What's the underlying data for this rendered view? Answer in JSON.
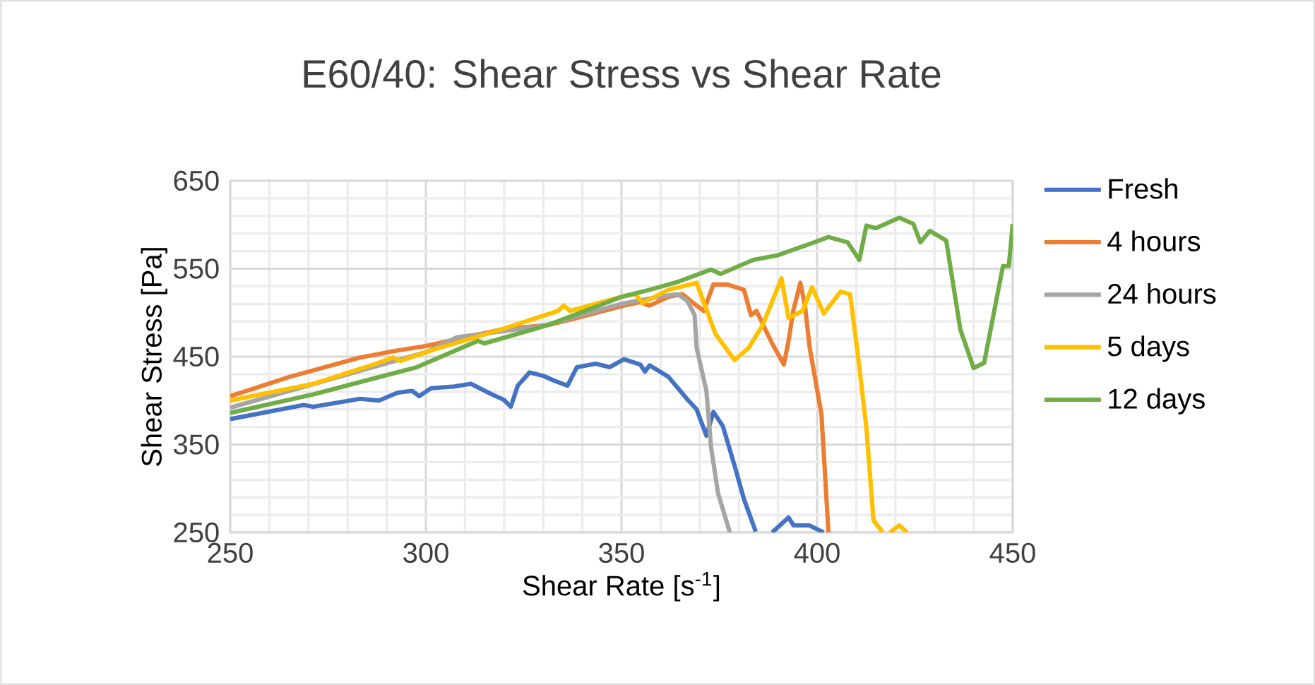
{
  "chart_data": {
    "type": "line",
    "title": "E60/40: Shear Stress vs Shear Rate",
    "xlabel": "Shear Rate [s$^{-1}$]",
    "ylabel": "Shear Stress [Pa]",
    "xlim": [
      250,
      450
    ],
    "ylim": [
      250,
      650
    ],
    "xticks": [
      250,
      300,
      350,
      400,
      450
    ],
    "yticks": [
      250,
      350,
      450,
      550,
      650
    ],
    "grid": true,
    "legend": "right",
    "marker": "none",
    "line_style": "solid",
    "series": [
      {
        "name": "Fresh",
        "color": "#4472c4",
        "x": [
          250,
          268.8,
          271.2,
          283.2,
          288,
          292.8,
          296.5,
          298.3,
          301.3,
          307.3,
          311.5,
          316.9,
          319.9,
          321.7,
          323.5,
          326.5,
          330.1,
          332.6,
          336.2,
          338.6,
          343.4,
          347,
          350.6,
          354.8,
          356,
          357.2,
          362,
          366.9,
          369.2,
          371.7,
          373.5,
          375.9,
          378.9,
          381.3,
          384.3,
          386,
          388.5,
          392.7,
          394,
          398,
          401.7
        ],
        "values": [
          379,
          395,
          393,
          402,
          400,
          409,
          411,
          405,
          414,
          416,
          419,
          407,
          401,
          393,
          417,
          432,
          428,
          423,
          417,
          438,
          442,
          438,
          447,
          441,
          433,
          440,
          427,
          401,
          390,
          360,
          387,
          371,
          326,
          288,
          251,
          null,
          250,
          267,
          258,
          258,
          250
        ]
      },
      {
        "name": "4 hours",
        "color": "#ed7d31",
        "x": [
          250,
          265.2,
          283.2,
          292.8,
          300,
          319.3,
          331.3,
          338.6,
          350.6,
          354.8,
          357.2,
          362,
          365.6,
          369.2,
          371,
          373.5,
          377.1,
          381.3,
          383.1,
          384.5,
          388.5,
          391.5,
          392.7,
          393.9,
          395.7,
          396.9,
          398.1,
          401.1,
          402.9
        ],
        "values": [
          405,
          427,
          449,
          457,
          462,
          481,
          486,
          494,
          508,
          512,
          508,
          518,
          521,
          508,
          502,
          532,
          532,
          526,
          497,
          502,
          465,
          441,
          468,
          502,
          534,
          508,
          460,
          385,
          250
        ]
      },
      {
        "name": "24 hours",
        "color": "#a5a5a5",
        "x": [
          250,
          300,
          308,
          330,
          350,
          359.6,
          364.4,
          366.9,
          368.7,
          369.2,
          371.7,
          372.9,
          374.7,
          377.7
        ],
        "values": [
          392,
          455,
          472,
          485,
          510,
          518,
          521,
          513,
          497,
          460,
          411,
          347,
          294,
          250
        ]
      },
      {
        "name": "5 days",
        "color": "#ffc000",
        "x": [
          250,
          271.2,
          288,
          291.6,
          293.5,
          301.3,
          319.3,
          333.8,
          335.2,
          336.9,
          350,
          353.6,
          355.4,
          362,
          369.2,
          374,
          378.9,
          382.5,
          386.1,
          390.9,
          392.7,
          396.3,
          398.7,
          401.7,
          406,
          408.4,
          410.2,
          412.6,
          414.4,
          416.8,
          417.7,
          418.6,
          421,
          423
        ],
        "values": [
          400,
          419,
          443,
          449,
          445,
          457,
          481,
          502,
          508,
          502,
          518,
          521,
          511,
          526,
          534,
          476,
          446,
          460,
          486,
          539,
          494,
          502,
          529,
          499,
          524,
          521,
          460,
          369,
          264,
          250,
          null,
          250,
          258,
          250
        ]
      },
      {
        "name": "12 days",
        "color": "#70ad47",
        "x": [
          250,
          271.2,
          297.7,
          313.3,
          315,
          331.3,
          350,
          357.2,
          364.4,
          372.9,
          375.3,
          383.7,
          389.7,
          399.3,
          402.9,
          407.8,
          410.8,
          412.6,
          415,
          421,
          424.6,
          426.4,
          428.8,
          433,
          436.6,
          440,
          442.7,
          447.5,
          449,
          450
        ],
        "values": [
          386,
          407,
          438,
          468,
          465,
          486,
          518,
          526,
          535,
          549,
          544,
          560,
          565,
          580,
          586,
          580,
          560,
          599,
          596,
          608,
          601,
          580,
          593,
          582,
          481,
          437,
          443,
          553,
          553,
          601
        ]
      }
    ]
  }
}
